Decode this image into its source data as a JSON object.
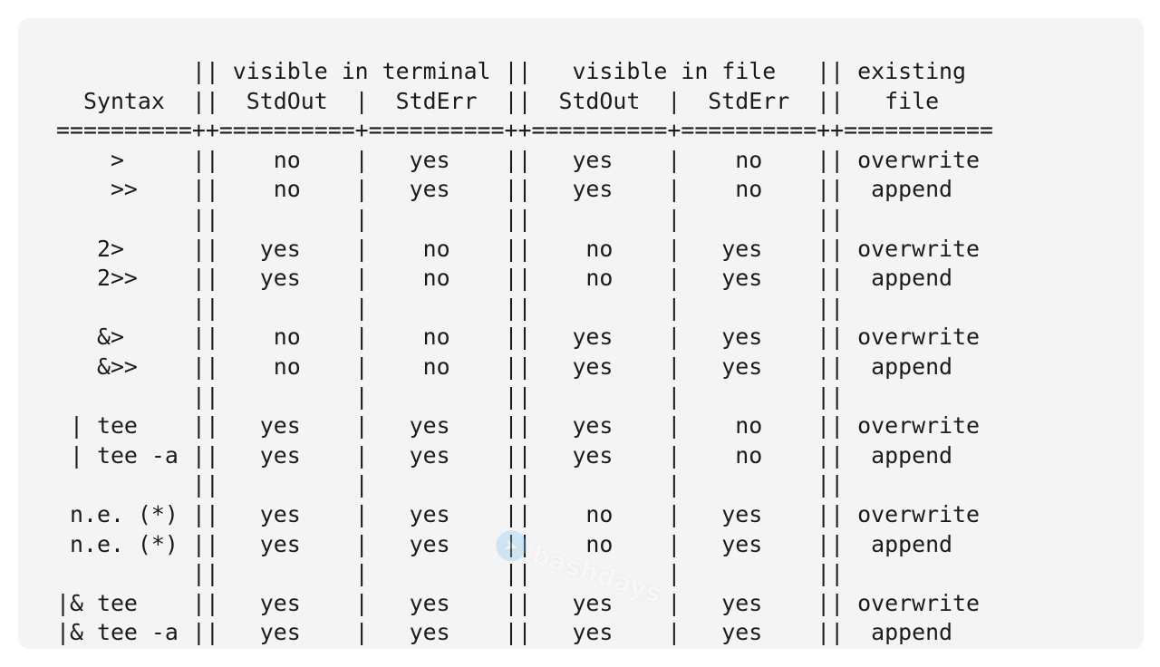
{
  "table_lines": [
    "          || visible in terminal ||   visible in file   || existing",
    "  Syntax  ||  StdOut  |  StdErr  ||  StdOut  |  StdErr  ||   file",
    "==========++==========+==========++==========+==========++===========",
    "    >     ||    no    |   yes    ||   yes    |    no    || overwrite",
    "    >>    ||    no    |   yes    ||   yes    |    no    ||  append",
    "          ||          |          ||          |          ||",
    "   2>     ||   yes    |    no    ||    no    |   yes    || overwrite",
    "   2>>    ||   yes    |    no    ||    no    |   yes    ||  append",
    "          ||          |          ||          |          ||",
    "   &>     ||    no    |    no    ||   yes    |   yes    || overwrite",
    "   &>>    ||    no    |    no    ||   yes    |   yes    ||  append",
    "          ||          |          ||          |          ||",
    " | tee    ||   yes    |   yes    ||   yes    |    no    || overwrite",
    " | tee -a ||   yes    |   yes    ||   yes    |    no    ||  append",
    "          ||          |          ||          |          ||",
    " n.e. (*) ||   yes    |   yes    ||    no    |   yes    || overwrite",
    " n.e. (*) ||   yes    |   yes    ||    no    |   yes    ||  append",
    "          ||          |          ||          |          ||",
    "|& tee    ||   yes    |   yes    ||   yes    |   yes    || overwrite",
    "|& tee -a ||   yes    |   yes    ||   yes    |   yes    ||  append"
  ],
  "watermark": {
    "text": "bashdays",
    "icon": "telegram-icon"
  }
}
